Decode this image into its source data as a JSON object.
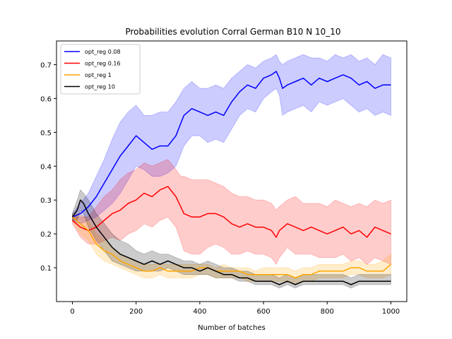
{
  "chart_data": {
    "type": "line",
    "title": "Probabilities evolution Corral German B10 N 10_10",
    "xlabel": "Number of batches",
    "ylabel": "",
    "xlim": [
      -50,
      1050
    ],
    "ylim": [
      0.0,
      0.77
    ],
    "xticks": [
      0,
      200,
      400,
      600,
      800,
      1000
    ],
    "yticks": [
      0.1,
      0.2,
      0.3,
      0.4,
      0.5,
      0.6,
      0.7
    ],
    "grid": false,
    "legend_position": "top-left",
    "series": [
      {
        "name": "opt_reg 0.08",
        "color": "#0000ff",
        "x": [
          0,
          25,
          50,
          75,
          100,
          125,
          150,
          175,
          200,
          225,
          250,
          275,
          300,
          325,
          350,
          375,
          400,
          425,
          450,
          475,
          500,
          525,
          550,
          575,
          600,
          625,
          640,
          650,
          660,
          675,
          700,
          725,
          750,
          775,
          800,
          825,
          850,
          875,
          900,
          925,
          950,
          975,
          1000
        ],
        "y": [
          0.25,
          0.26,
          0.28,
          0.31,
          0.35,
          0.39,
          0.43,
          0.46,
          0.49,
          0.47,
          0.45,
          0.46,
          0.46,
          0.49,
          0.55,
          0.57,
          0.56,
          0.55,
          0.56,
          0.55,
          0.59,
          0.62,
          0.64,
          0.63,
          0.66,
          0.67,
          0.68,
          0.66,
          0.63,
          0.64,
          0.65,
          0.66,
          0.64,
          0.66,
          0.65,
          0.66,
          0.67,
          0.66,
          0.64,
          0.65,
          0.63,
          0.64,
          0.64
        ],
        "upper": [
          0.26,
          0.29,
          0.32,
          0.37,
          0.42,
          0.48,
          0.53,
          0.56,
          0.58,
          0.55,
          0.55,
          0.56,
          0.56,
          0.59,
          0.63,
          0.65,
          0.63,
          0.63,
          0.64,
          0.63,
          0.66,
          0.68,
          0.7,
          0.69,
          0.71,
          0.72,
          0.73,
          0.71,
          0.7,
          0.71,
          0.72,
          0.73,
          0.72,
          0.72,
          0.71,
          0.73,
          0.72,
          0.73,
          0.71,
          0.72,
          0.7,
          0.73,
          0.72
        ],
        "lower": [
          0.24,
          0.23,
          0.24,
          0.25,
          0.27,
          0.29,
          0.32,
          0.36,
          0.4,
          0.39,
          0.37,
          0.37,
          0.38,
          0.4,
          0.46,
          0.49,
          0.49,
          0.47,
          0.48,
          0.47,
          0.51,
          0.55,
          0.57,
          0.56,
          0.6,
          0.62,
          0.63,
          0.61,
          0.55,
          0.56,
          0.57,
          0.58,
          0.56,
          0.59,
          0.58,
          0.59,
          0.6,
          0.58,
          0.56,
          0.57,
          0.55,
          0.56,
          0.55
        ]
      },
      {
        "name": "opt_reg 0.16",
        "color": "#ff0000",
        "x": [
          0,
          25,
          50,
          75,
          100,
          125,
          150,
          175,
          200,
          225,
          250,
          275,
          300,
          325,
          340,
          350,
          375,
          400,
          425,
          450,
          475,
          500,
          525,
          550,
          575,
          600,
          625,
          640,
          650,
          675,
          700,
          725,
          750,
          775,
          800,
          825,
          850,
          875,
          900,
          925,
          950,
          975,
          1000
        ],
        "y": [
          0.24,
          0.22,
          0.21,
          0.22,
          0.24,
          0.26,
          0.27,
          0.29,
          0.3,
          0.32,
          0.31,
          0.33,
          0.34,
          0.31,
          0.28,
          0.26,
          0.25,
          0.25,
          0.26,
          0.26,
          0.25,
          0.23,
          0.22,
          0.23,
          0.22,
          0.22,
          0.21,
          0.19,
          0.21,
          0.23,
          0.22,
          0.21,
          0.22,
          0.21,
          0.2,
          0.21,
          0.22,
          0.2,
          0.21,
          0.19,
          0.22,
          0.21,
          0.2
        ],
        "upper": [
          0.25,
          0.25,
          0.25,
          0.28,
          0.31,
          0.33,
          0.36,
          0.38,
          0.39,
          0.41,
          0.4,
          0.41,
          0.42,
          0.39,
          0.37,
          0.37,
          0.36,
          0.36,
          0.36,
          0.35,
          0.34,
          0.32,
          0.31,
          0.31,
          0.3,
          0.3,
          0.29,
          0.27,
          0.28,
          0.3,
          0.31,
          0.29,
          0.29,
          0.29,
          0.28,
          0.3,
          0.29,
          0.28,
          0.29,
          0.28,
          0.3,
          0.29,
          0.3
        ],
        "lower": [
          0.23,
          0.19,
          0.17,
          0.17,
          0.18,
          0.19,
          0.18,
          0.2,
          0.21,
          0.23,
          0.22,
          0.24,
          0.25,
          0.22,
          0.18,
          0.15,
          0.14,
          0.14,
          0.16,
          0.17,
          0.16,
          0.14,
          0.14,
          0.15,
          0.14,
          0.14,
          0.13,
          0.11,
          0.13,
          0.16,
          0.14,
          0.14,
          0.14,
          0.13,
          0.13,
          0.13,
          0.14,
          0.12,
          0.13,
          0.11,
          0.13,
          0.12,
          0.11
        ]
      },
      {
        "name": "opt_reg 1",
        "color": "#ffa500",
        "x": [
          0,
          25,
          50,
          75,
          100,
          125,
          150,
          175,
          200,
          225,
          250,
          275,
          300,
          325,
          350,
          375,
          400,
          425,
          450,
          475,
          500,
          525,
          550,
          575,
          600,
          625,
          650,
          675,
          700,
          725,
          750,
          775,
          800,
          825,
          850,
          875,
          900,
          925,
          950,
          975,
          1000
        ],
        "y": [
          0.25,
          0.23,
          0.21,
          0.17,
          0.15,
          0.14,
          0.12,
          0.11,
          0.1,
          0.09,
          0.09,
          0.1,
          0.09,
          0.09,
          0.09,
          0.09,
          0.1,
          0.1,
          0.09,
          0.09,
          0.09,
          0.09,
          0.08,
          0.08,
          0.08,
          0.08,
          0.08,
          0.08,
          0.07,
          0.08,
          0.08,
          0.09,
          0.09,
          0.09,
          0.09,
          0.1,
          0.1,
          0.09,
          0.09,
          0.09,
          0.11
        ],
        "upper": [
          0.26,
          0.26,
          0.24,
          0.2,
          0.18,
          0.16,
          0.14,
          0.13,
          0.12,
          0.11,
          0.11,
          0.11,
          0.11,
          0.11,
          0.11,
          0.11,
          0.11,
          0.11,
          0.1,
          0.11,
          0.1,
          0.1,
          0.1,
          0.09,
          0.1,
          0.1,
          0.1,
          0.1,
          0.09,
          0.1,
          0.1,
          0.11,
          0.11,
          0.11,
          0.11,
          0.12,
          0.12,
          0.11,
          0.11,
          0.12,
          0.14
        ],
        "lower": [
          0.24,
          0.2,
          0.18,
          0.14,
          0.12,
          0.11,
          0.1,
          0.09,
          0.08,
          0.07,
          0.07,
          0.08,
          0.07,
          0.07,
          0.07,
          0.07,
          0.08,
          0.08,
          0.07,
          0.07,
          0.07,
          0.07,
          0.06,
          0.06,
          0.06,
          0.06,
          0.06,
          0.06,
          0.05,
          0.06,
          0.06,
          0.07,
          0.07,
          0.07,
          0.07,
          0.08,
          0.08,
          0.07,
          0.07,
          0.07,
          0.08
        ]
      },
      {
        "name": "opt_reg 10",
        "color": "#000000",
        "x": [
          0,
          15,
          25,
          35,
          50,
          75,
          100,
          125,
          150,
          175,
          200,
          225,
          250,
          275,
          300,
          325,
          350,
          375,
          400,
          425,
          450,
          475,
          500,
          525,
          550,
          575,
          600,
          625,
          650,
          675,
          700,
          725,
          750,
          775,
          800,
          825,
          850,
          875,
          900,
          925,
          950,
          975,
          1000
        ],
        "y": [
          0.25,
          0.27,
          0.3,
          0.29,
          0.26,
          0.22,
          0.19,
          0.16,
          0.14,
          0.13,
          0.12,
          0.11,
          0.12,
          0.11,
          0.12,
          0.11,
          0.1,
          0.1,
          0.09,
          0.1,
          0.09,
          0.08,
          0.08,
          0.07,
          0.07,
          0.06,
          0.06,
          0.06,
          0.05,
          0.06,
          0.05,
          0.06,
          0.06,
          0.06,
          0.06,
          0.06,
          0.06,
          0.05,
          0.06,
          0.06,
          0.06,
          0.06,
          0.06
        ],
        "upper": [
          0.26,
          0.3,
          0.33,
          0.32,
          0.3,
          0.26,
          0.23,
          0.2,
          0.18,
          0.17,
          0.15,
          0.14,
          0.15,
          0.14,
          0.14,
          0.13,
          0.12,
          0.12,
          0.11,
          0.12,
          0.11,
          0.1,
          0.1,
          0.09,
          0.09,
          0.08,
          0.08,
          0.08,
          0.07,
          0.08,
          0.07,
          0.08,
          0.08,
          0.08,
          0.08,
          0.08,
          0.08,
          0.07,
          0.08,
          0.08,
          0.08,
          0.08,
          0.08
        ],
        "lower": [
          0.24,
          0.24,
          0.27,
          0.26,
          0.22,
          0.18,
          0.15,
          0.12,
          0.11,
          0.1,
          0.09,
          0.09,
          0.09,
          0.09,
          0.1,
          0.09,
          0.08,
          0.08,
          0.08,
          0.08,
          0.07,
          0.07,
          0.07,
          0.06,
          0.06,
          0.05,
          0.05,
          0.05,
          0.04,
          0.05,
          0.04,
          0.05,
          0.05,
          0.05,
          0.05,
          0.05,
          0.05,
          0.04,
          0.05,
          0.05,
          0.05,
          0.05,
          0.05
        ]
      }
    ]
  }
}
